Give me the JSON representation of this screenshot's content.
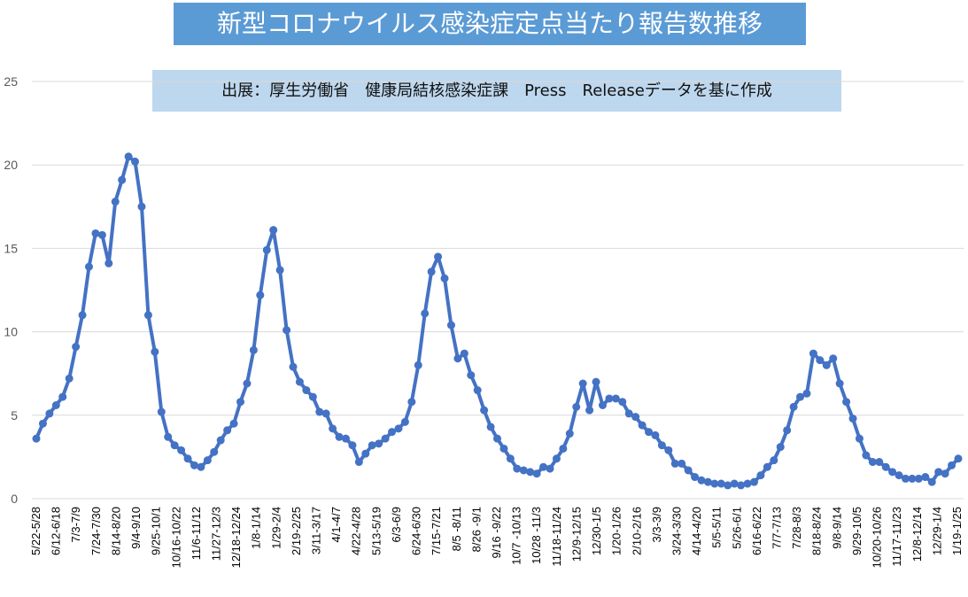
{
  "chart_data": {
    "type": "line",
    "title": "新型コロナウイルス感染症定点当たり報告数推移",
    "subtitle": "出展：厚生労働省　健康局結核感染症課　Press　Releaseデータを基に作成",
    "ylim": [
      0,
      25
    ],
    "yticks": [
      0,
      5,
      10,
      15,
      20,
      25
    ],
    "grid": true,
    "line_color": "#4472c4",
    "x_tick_labels": [
      "5/22-5/28",
      "6/12-6/18",
      "7/3-7/9",
      "7/24-7/30",
      "8/14-8/20",
      "9/4-9/10",
      "9/25-10/1",
      "10/16-10/22",
      "11/6-11/12",
      "11/27-12/3",
      "12/18-12/24",
      "1/8-1/14",
      "1/29-2/4",
      "2/19-2/25",
      "3/11-3/17",
      "4/1-4/7",
      "4/22-4/28",
      "5/13-5/19",
      "6/3-6/9",
      "6/24-6/30",
      "7/15-7/21",
      "8/5 -8/11",
      "8/26 -9/1",
      "9/16 -9/22",
      "10/7 -10/13",
      "10/28 -11/3",
      "11/18-11/24",
      "12/9-12/15",
      "12/30-1/5",
      "1/20-1/26",
      "2/10-2/16",
      "3/3-3/9",
      "3/24-3/30",
      "4/14-4/20",
      "5/5-5/11",
      "5/26-6/1",
      "6/16-6/22",
      "7/7-7/13",
      "7/28-8/3",
      "8/18-8/24",
      "9/8-9/14",
      "9/29-10/5",
      "10/20-10/26",
      "11/17-11/23",
      "12/8-12/14",
      "12/29-1/4",
      "1/19-1/25"
    ],
    "values": [
      3.6,
      4.5,
      5.1,
      5.6,
      6.1,
      7.2,
      9.1,
      11.0,
      13.9,
      15.9,
      15.8,
      14.1,
      17.8,
      19.1,
      20.5,
      20.2,
      17.5,
      11.0,
      8.8,
      5.2,
      3.7,
      3.2,
      2.9,
      2.4,
      2.0,
      1.9,
      2.3,
      2.8,
      3.5,
      4.1,
      4.5,
      5.8,
      6.9,
      8.9,
      12.2,
      14.9,
      16.1,
      13.7,
      10.1,
      7.9,
      7.0,
      6.5,
      6.1,
      5.2,
      5.1,
      4.2,
      3.7,
      3.6,
      3.2,
      2.2,
      2.7,
      3.2,
      3.3,
      3.6,
      4.0,
      4.2,
      4.6,
      5.8,
      8.0,
      11.1,
      13.6,
      14.5,
      13.2,
      10.4,
      8.4,
      8.7,
      7.4,
      6.5,
      5.3,
      4.3,
      3.6,
      3.0,
      2.4,
      1.8,
      1.7,
      1.6,
      1.5,
      1.9,
      1.8,
      2.4,
      3.0,
      3.9,
      5.5,
      6.9,
      5.3,
      7.0,
      5.6,
      6.0,
      6.0,
      5.8,
      5.1,
      4.9,
      4.4,
      4.0,
      3.8,
      3.2,
      2.9,
      2.1,
      2.1,
      1.7,
      1.3,
      1.1,
      1.0,
      0.9,
      0.9,
      0.8,
      0.9,
      0.8,
      0.9,
      1.0,
      1.4,
      1.9,
      2.3,
      3.1,
      4.1,
      5.5,
      6.1,
      6.3,
      8.7,
      8.3,
      8.0,
      8.4,
      6.9,
      5.8,
      4.8,
      3.6,
      2.6,
      2.2,
      2.2,
      1.9,
      1.6,
      1.4,
      1.2,
      1.2,
      1.2,
      1.3,
      1.0,
      1.6,
      1.5,
      2.0,
      2.4
    ]
  }
}
